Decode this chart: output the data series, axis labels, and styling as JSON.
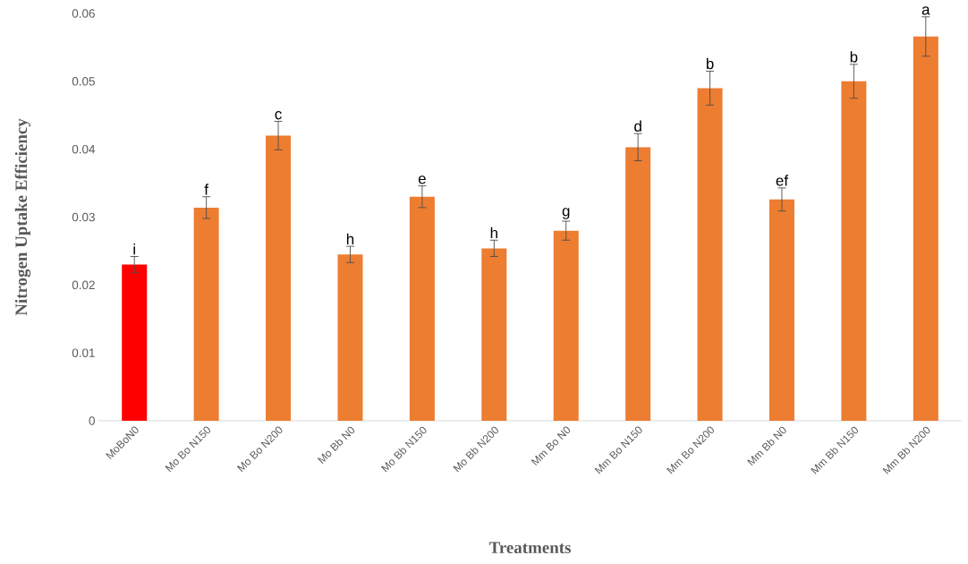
{
  "chart_data": {
    "type": "bar",
    "xlabel": "Treatments",
    "ylabel": "Nitrogen Uptake Efficiency",
    "categories": [
      "MoBoN0",
      "Mo Bo N150",
      "Mo Bo N200",
      "Mo Bb N0",
      "Mo Bb N150",
      "Mo Bb N200",
      "Mm Bo N0",
      "Mm Bo N150",
      "Mm Bo N200",
      "Mm Bb N0",
      "Mm Bb N150",
      "Mm Bb N200"
    ],
    "values": [
      0.023,
      0.0314,
      0.042,
      0.0245,
      0.033,
      0.0254,
      0.028,
      0.0403,
      0.049,
      0.0326,
      0.05,
      0.0566
    ],
    "errors": [
      0.0012,
      0.0016,
      0.0021,
      0.0012,
      0.0016,
      0.0012,
      0.0014,
      0.002,
      0.0025,
      0.0017,
      0.0025,
      0.0029
    ],
    "colors": [
      "#ff0000",
      "#ed7d31",
      "#ed7d31",
      "#ed7d31",
      "#ed7d31",
      "#ed7d31",
      "#ed7d31",
      "#ed7d31",
      "#ed7d31",
      "#ed7d31",
      "#ed7d31",
      "#ed7d31"
    ],
    "ylim": [
      0,
      0.06
    ],
    "yticks": [
      0,
      0.01,
      0.02,
      0.03,
      0.04,
      0.05,
      0.06
    ],
    "annotations": [
      {
        "text": "i",
        "x": "MoBoN0",
        "y": 0.0242
      },
      {
        "text": "f",
        "x": "Mo Bo N150",
        "y": 0.033
      },
      {
        "text": "c",
        "x": "Mo Bo N200",
        "y": 0.0441
      },
      {
        "text": "h",
        "x": "Mo Bb N0",
        "y": 0.0257
      },
      {
        "text": "e",
        "x": "Mo Bb N150",
        "y": 0.0346
      },
      {
        "text": "h",
        "x": "Mo Bb N200",
        "y": 0.0266
      },
      {
        "text": "g",
        "x": "Mm Bo N0",
        "y": 0.0294
      },
      {
        "text": "d",
        "x": "Mm Bo N150",
        "y": 0.0423
      },
      {
        "text": "b",
        "x": "Mm Bo N200",
        "y": 0.0515
      },
      {
        "text": "ef",
        "x": "Mm Bb N0",
        "y": 0.0343
      },
      {
        "text": "b",
        "x": "Mm Bb N150",
        "y": 0.0525
      },
      {
        "text": "a",
        "x": "Mm Bb N200",
        "y": 0.0595
      }
    ]
  }
}
